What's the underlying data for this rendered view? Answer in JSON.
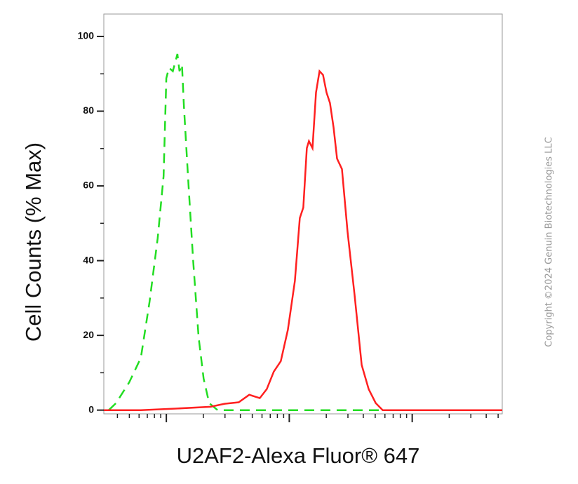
{
  "chart_data": {
    "type": "line",
    "x_label": "U2AF2-Alexa Fluor® 647",
    "y_label": "Cell Counts (% Max)",
    "watermark": "Copyright ©2024 Genuin Biotechnologies LLC",
    "xscale": "log",
    "xlim": [
      31,
      54000
    ],
    "xticks": [
      100,
      1000,
      10000
    ],
    "ylim": [
      -1,
      106
    ],
    "yticks": [
      0,
      20,
      40,
      60,
      80,
      100
    ],
    "series": [
      {
        "color": "#22dd22",
        "dashed": true,
        "x": [
          34,
          39,
          50,
          62,
          73,
          85,
          95,
          100,
          105,
          113,
          119,
          123,
          128,
          134,
          139,
          150,
          165,
          183,
          201,
          223,
          261,
          853,
          54000
        ],
        "values": [
          0,
          1.9,
          7.5,
          14,
          29,
          46,
          62.6,
          88.8,
          91.6,
          90.7,
          93.5,
          95.3,
          90.7,
          92.5,
          81.3,
          62.6,
          40.2,
          19.6,
          8.4,
          1.9,
          0,
          0,
          0
        ]
      },
      {
        "color": "#ff2020",
        "dashed": false,
        "x": [
          31,
          62,
          119,
          229,
          298,
          388,
          472,
          575,
          656,
          748,
          853,
          974,
          1111,
          1218,
          1301,
          1389,
          1445,
          1545,
          1649,
          1762,
          1881,
          2009,
          2144,
          2291,
          2447,
          2683,
          2981,
          3398,
          3882,
          4424,
          5047,
          5754,
          7015,
          54000
        ],
        "values": [
          0,
          0,
          0.4,
          0.9,
          1.7,
          2.1,
          4.1,
          3.2,
          5.6,
          10.3,
          13.1,
          21.5,
          34.6,
          51.4,
          54.2,
          70.1,
          72,
          70.1,
          85,
          90.7,
          89.7,
          85,
          82.2,
          75.7,
          67.3,
          64.5,
          47.7,
          30.8,
          12.1,
          5.6,
          1.9,
          0,
          0,
          0
        ]
      }
    ]
  }
}
